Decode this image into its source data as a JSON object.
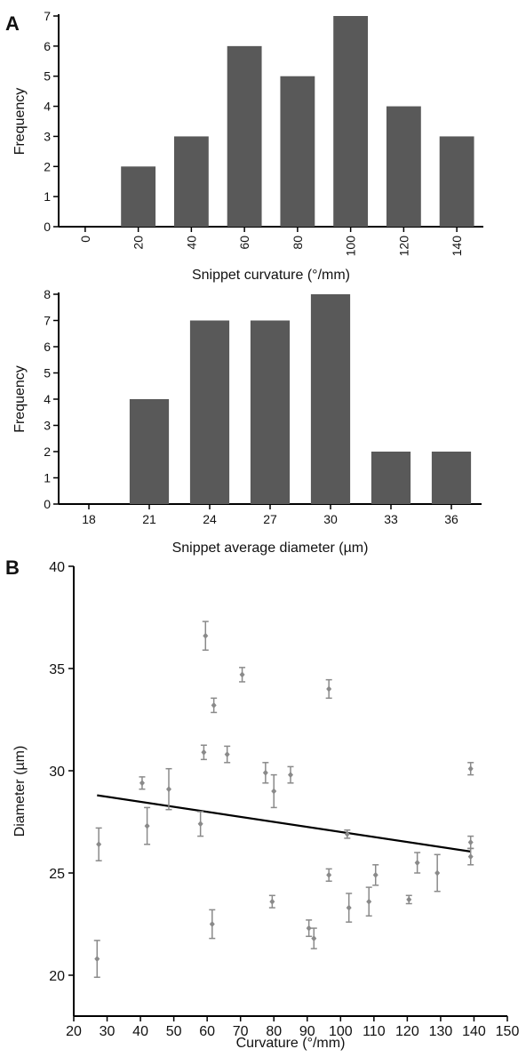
{
  "chart_data": [
    {
      "type": "bar",
      "panel": "A",
      "xlabel": "Snippet curvature (°/mm)",
      "ylabel": "Frequency",
      "ylim": [
        0,
        7
      ],
      "yticks": [
        "0",
        "1",
        "2",
        "3",
        "4",
        "5",
        "6",
        "7"
      ],
      "categories": [
        "0",
        "20",
        "40",
        "60",
        "80",
        "100",
        "120",
        "140"
      ],
      "values": [
        0,
        2,
        3,
        6,
        5,
        7,
        4,
        3
      ],
      "bar_color": "#595959"
    },
    {
      "type": "bar",
      "xlabel": "Snippet average diameter (µm)",
      "ylabel": "Frequency",
      "ylim": [
        0,
        8
      ],
      "yticks": [
        "0",
        "1",
        "2",
        "3",
        "4",
        "5",
        "6",
        "7",
        "8"
      ],
      "categories": [
        "18",
        "21",
        "24",
        "27",
        "30",
        "33",
        "36"
      ],
      "values": [
        0,
        4,
        7,
        7,
        8,
        2,
        2
      ],
      "bar_color": "#595959"
    },
    {
      "type": "scatter",
      "panel": "B",
      "xlabel": "Curvature (°/mm)",
      "ylabel": "Diameter (µm)",
      "xlim": [
        20,
        150
      ],
      "ylim": [
        18,
        40
      ],
      "xticks": [
        "20",
        "30",
        "40",
        "50",
        "60",
        "70",
        "80",
        "90",
        "100",
        "110",
        "120",
        "130",
        "140",
        "150"
      ],
      "yticks": [
        "20",
        "25",
        "30",
        "35",
        "40"
      ],
      "point_color": "#8a8a8a",
      "trendline": {
        "x": [
          27,
          139
        ],
        "y": [
          28.8,
          26.05
        ]
      },
      "points": [
        {
          "x": 27,
          "y": 20.8,
          "err": 0.9
        },
        {
          "x": 27.5,
          "y": 26.4,
          "err": 0.8
        },
        {
          "x": 40.5,
          "y": 29.4,
          "err": 0.3
        },
        {
          "x": 42,
          "y": 27.3,
          "err": 0.9
        },
        {
          "x": 48.5,
          "y": 29.1,
          "err": 1.0
        },
        {
          "x": 58,
          "y": 27.4,
          "err": 0.6
        },
        {
          "x": 59,
          "y": 30.9,
          "err": 0.35
        },
        {
          "x": 59.5,
          "y": 36.6,
          "err": 0.7
        },
        {
          "x": 61.5,
          "y": 22.5,
          "err": 0.7
        },
        {
          "x": 62,
          "y": 33.2,
          "err": 0.35
        },
        {
          "x": 66,
          "y": 30.8,
          "err": 0.4
        },
        {
          "x": 70.5,
          "y": 34.7,
          "err": 0.35
        },
        {
          "x": 77.5,
          "y": 29.9,
          "err": 0.5
        },
        {
          "x": 79.5,
          "y": 23.6,
          "err": 0.3
        },
        {
          "x": 80,
          "y": 29.0,
          "err": 0.8
        },
        {
          "x": 85,
          "y": 29.8,
          "err": 0.4
        },
        {
          "x": 90.5,
          "y": 22.3,
          "err": 0.4
        },
        {
          "x": 92,
          "y": 21.8,
          "err": 0.5
        },
        {
          "x": 96.5,
          "y": 34.0,
          "err": 0.45
        },
        {
          "x": 96.5,
          "y": 24.9,
          "err": 0.3
        },
        {
          "x": 102,
          "y": 26.9,
          "err": 0.2
        },
        {
          "x": 102.5,
          "y": 23.3,
          "err": 0.7
        },
        {
          "x": 108.5,
          "y": 23.6,
          "err": 0.7
        },
        {
          "x": 110.5,
          "y": 24.9,
          "err": 0.5
        },
        {
          "x": 120.5,
          "y": 23.7,
          "err": 0.2
        },
        {
          "x": 123,
          "y": 25.5,
          "err": 0.5
        },
        {
          "x": 129,
          "y": 25.0,
          "err": 0.9
        },
        {
          "x": 139,
          "y": 30.1,
          "err": 0.3
        },
        {
          "x": 139,
          "y": 26.5,
          "err": 0.3
        },
        {
          "x": 139,
          "y": 25.8,
          "err": 0.4
        }
      ]
    }
  ],
  "panels": {
    "a_letter": "A",
    "b_letter": "B"
  }
}
